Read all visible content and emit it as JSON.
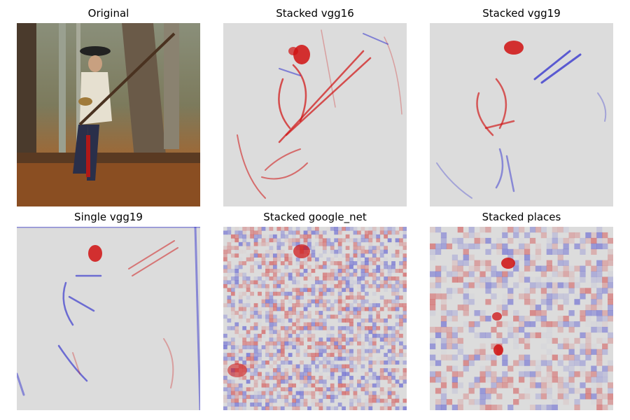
{
  "figure": {
    "panels": [
      {
        "title": "Original",
        "kind": "photo"
      },
      {
        "title": "Stacked vgg16",
        "kind": "saliency"
      },
      {
        "title": "Stacked vgg19",
        "kind": "saliency"
      },
      {
        "title": "Single vgg19",
        "kind": "saliency"
      },
      {
        "title": "Stacked google_net",
        "kind": "saliency"
      },
      {
        "title": "Stacked places",
        "kind": "saliency"
      }
    ],
    "colormap": {
      "negative": "#2222cc",
      "neutral": "#dcdcdc",
      "positive": "#d01010"
    }
  }
}
